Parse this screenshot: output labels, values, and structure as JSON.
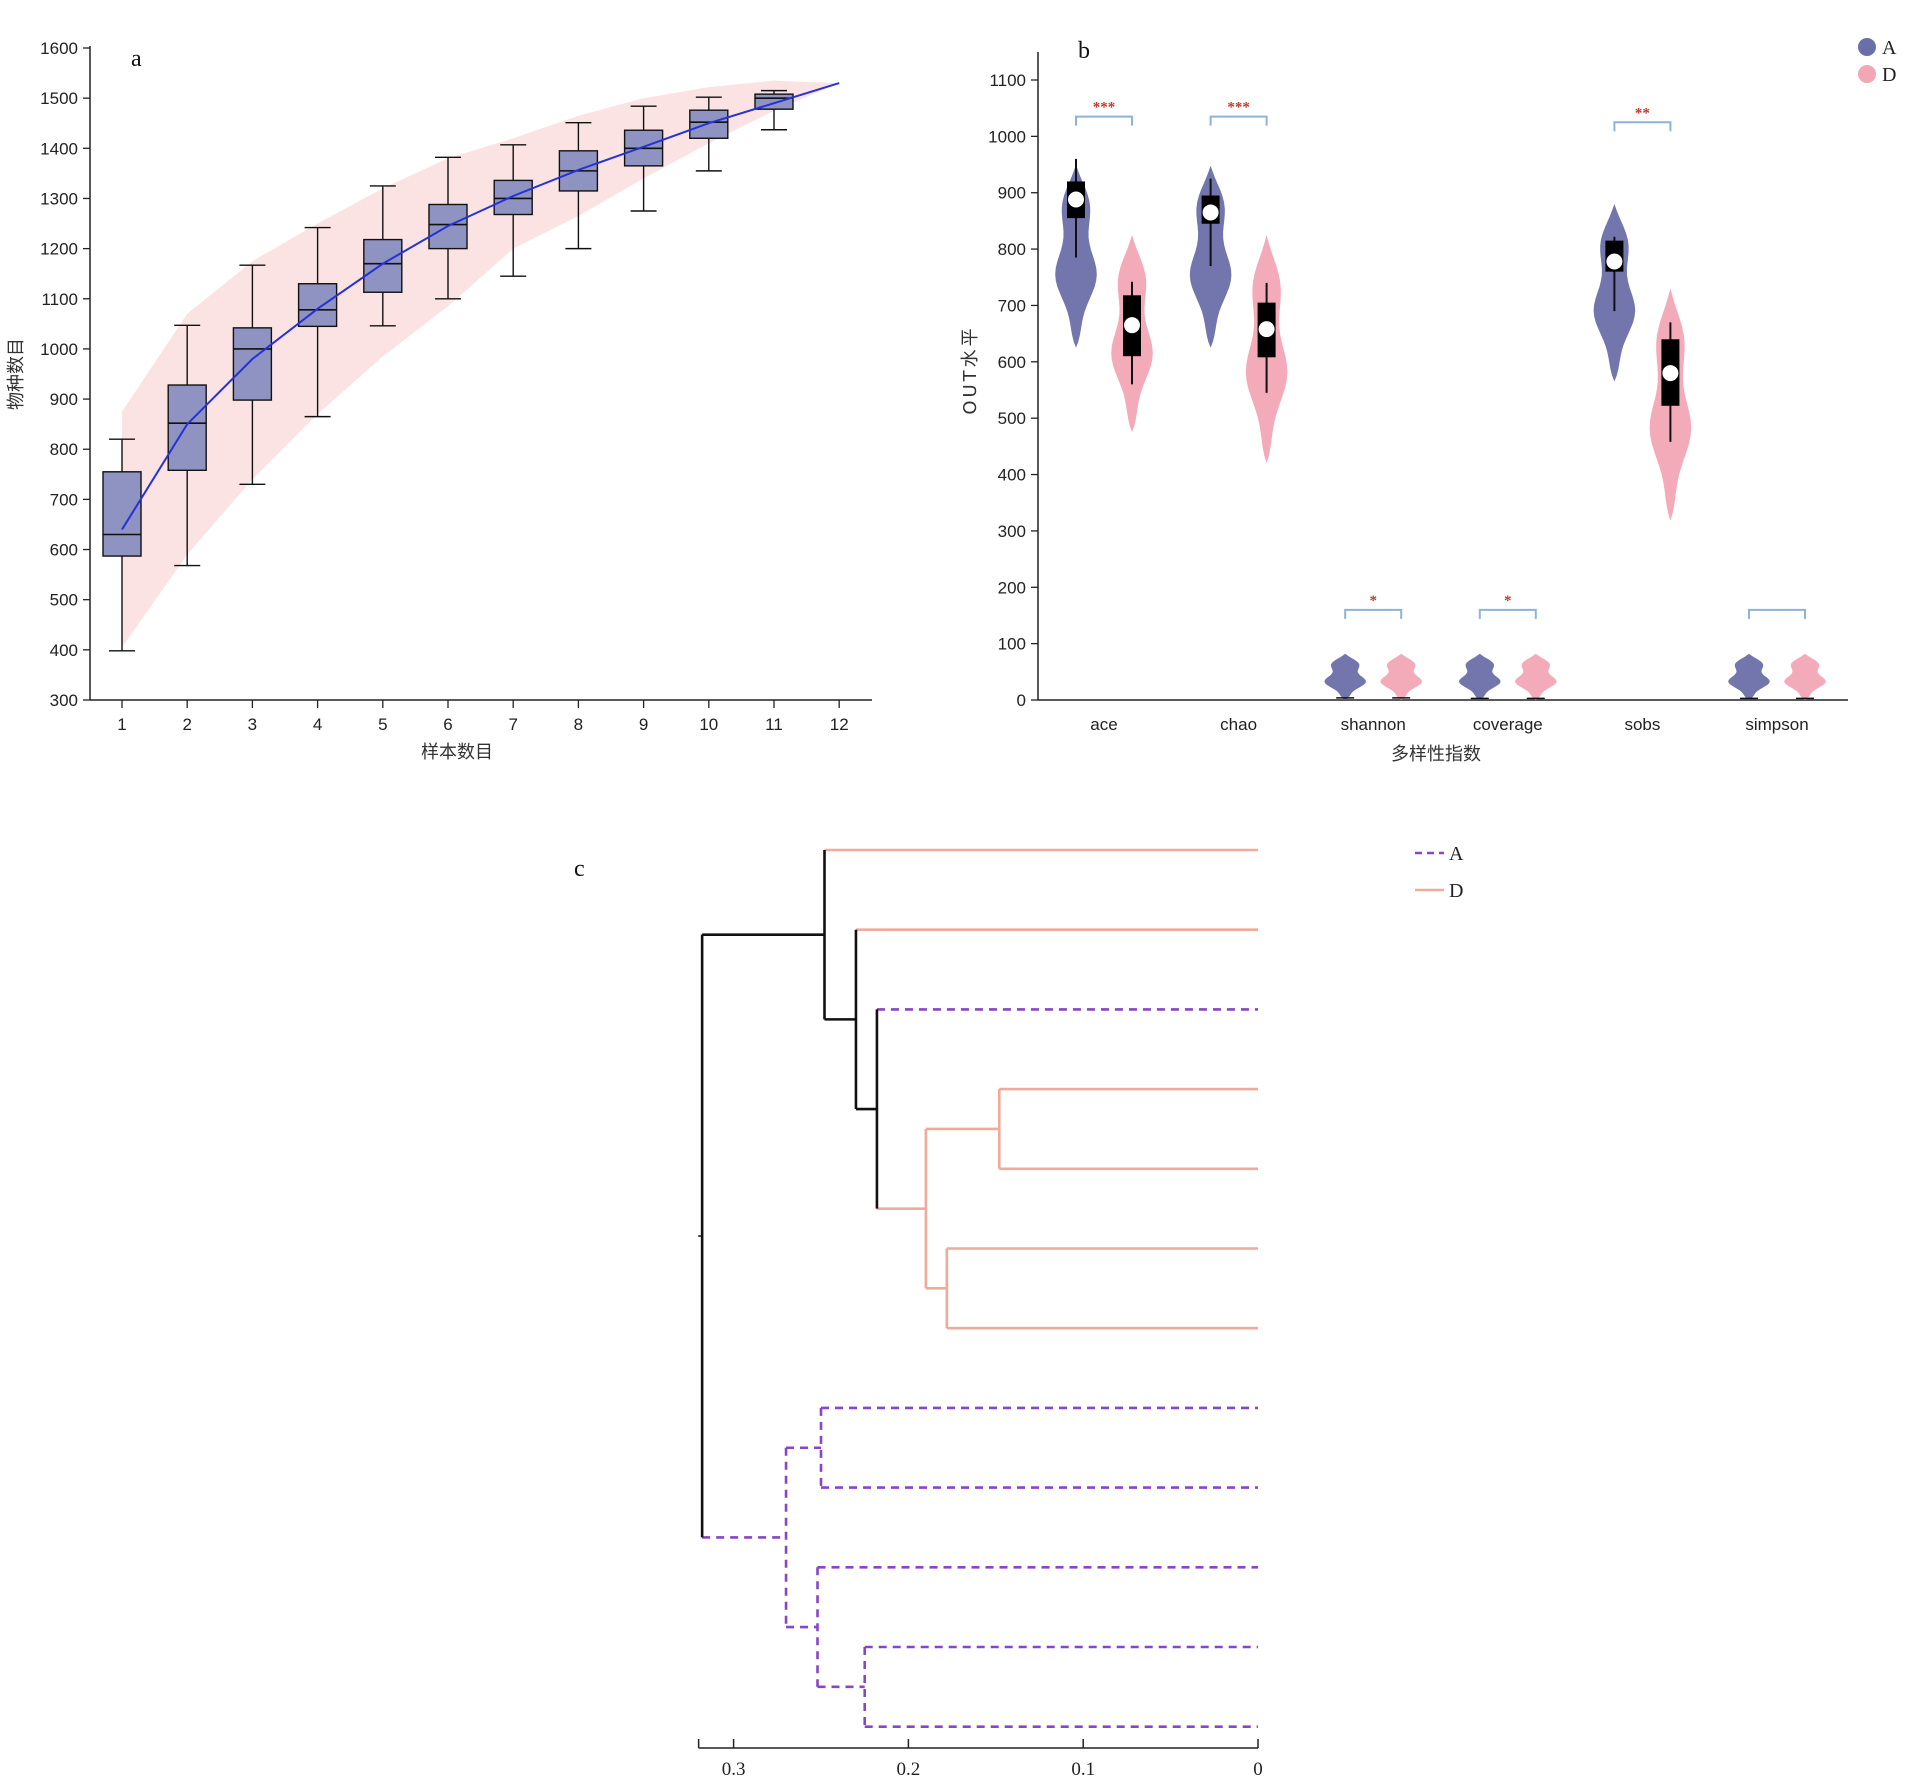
{
  "chart_data": [
    {
      "panel": "a",
      "type": "box",
      "label": "a",
      "xlabel": "样本数目",
      "ylabel": "物种数目",
      "ylim": [
        300,
        1600
      ],
      "yticks": [
        300,
        400,
        500,
        600,
        700,
        800,
        900,
        1000,
        1100,
        1200,
        1300,
        1400,
        1500,
        1600
      ],
      "categories": [
        "1",
        "2",
        "3",
        "4",
        "5",
        "6",
        "7",
        "8",
        "9",
        "10",
        "11",
        "12"
      ],
      "boxes": [
        {
          "min": 398,
          "q1": 587,
          "median": 630,
          "q3": 755,
          "max": 820
        },
        {
          "min": 568,
          "q1": 758,
          "median": 852,
          "q3": 928,
          "max": 1047
        },
        {
          "min": 730,
          "q1": 898,
          "median": 1000,
          "q3": 1042,
          "max": 1167
        },
        {
          "min": 865,
          "q1": 1045,
          "median": 1078,
          "q3": 1130,
          "max": 1242
        },
        {
          "min": 1046,
          "q1": 1113,
          "median": 1170,
          "q3": 1218,
          "max": 1325
        },
        {
          "min": 1100,
          "q1": 1200,
          "median": 1248,
          "q3": 1288,
          "max": 1382
        },
        {
          "min": 1145,
          "q1": 1268,
          "median": 1300,
          "q3": 1336,
          "max": 1407
        },
        {
          "min": 1200,
          "q1": 1315,
          "median": 1355,
          "q3": 1395,
          "max": 1451
        },
        {
          "min": 1275,
          "q1": 1365,
          "median": 1400,
          "q3": 1436,
          "max": 1484
        },
        {
          "min": 1355,
          "q1": 1420,
          "median": 1452,
          "q3": 1476,
          "max": 1502
        },
        {
          "min": 1437,
          "q1": 1478,
          "median": 1500,
          "q3": 1508,
          "max": 1515
        }
      ],
      "mean_curve": [
        640,
        850,
        980,
        1080,
        1170,
        1245,
        1305,
        1357,
        1403,
        1450,
        1490,
        1530
      ],
      "band_lower": [
        405,
        590,
        740,
        870,
        985,
        1085,
        1200,
        1265,
        1340,
        1410,
        1475,
        1530
      ],
      "band_upper": [
        875,
        1070,
        1175,
        1250,
        1320,
        1380,
        1420,
        1465,
        1500,
        1522,
        1535,
        1530
      ],
      "colors": {
        "box": "#8f93c2",
        "curve": "#2432d6",
        "band": "#fce3e3"
      }
    },
    {
      "panel": "b",
      "type": "violin",
      "label": "b",
      "xlabel": "多样性指数",
      "ylabel": "OUT水平",
      "ylim": [
        0,
        1150
      ],
      "yticks": [
        0,
        100,
        200,
        300,
        400,
        500,
        600,
        700,
        800,
        900,
        1000,
        1100
      ],
      "categories": [
        "ace",
        "chao",
        "shannon",
        "coverage",
        "sobs",
        "simpson"
      ],
      "legend": [
        {
          "name": "A",
          "color": "#6a6fa8"
        },
        {
          "name": "D",
          "color": "#f3a6b5"
        }
      ],
      "groups": [
        {
          "A": {
            "min": 785,
            "q1": 855,
            "median": 888,
            "q3": 920,
            "max": 960,
            "vmin": 625,
            "vmax": 950
          },
          "D": {
            "min": 560,
            "q1": 610,
            "median": 665,
            "q3": 718,
            "max": 742,
            "vmin": 475,
            "vmax": 825
          }
        },
        {
          "A": {
            "min": 770,
            "q1": 845,
            "median": 865,
            "q3": 895,
            "max": 925,
            "vmin": 625,
            "vmax": 948
          },
          "D": {
            "min": 545,
            "q1": 608,
            "median": 658,
            "q3": 705,
            "max": 740,
            "vmin": 420,
            "vmax": 825
          }
        },
        {
          "A": {
            "min": 0,
            "q1": 0,
            "median": 2,
            "q3": 4,
            "max": 6,
            "vmin": 0,
            "vmax": 82
          },
          "D": {
            "min": 0,
            "q1": 0,
            "median": 2,
            "q3": 4,
            "max": 6,
            "vmin": 0,
            "vmax": 82
          }
        },
        {
          "A": {
            "min": 0,
            "q1": 0,
            "median": 1,
            "q3": 1,
            "max": 1,
            "vmin": 0,
            "vmax": 82
          },
          "D": {
            "min": 0,
            "q1": 0,
            "median": 1,
            "q3": 1,
            "max": 1,
            "vmin": 0,
            "vmax": 82
          }
        },
        {
          "A": {
            "min": 690,
            "q1": 760,
            "median": 778,
            "q3": 815,
            "max": 822,
            "vmin": 565,
            "vmax": 880
          },
          "D": {
            "min": 458,
            "q1": 522,
            "median": 580,
            "q3": 640,
            "max": 670,
            "vmin": 318,
            "vmax": 730
          }
        },
        {
          "A": {
            "min": 0,
            "q1": 0,
            "median": 1,
            "q3": 1,
            "max": 1,
            "vmin": 0,
            "vmax": 82
          },
          "D": {
            "min": 0,
            "q1": 0,
            "median": 1,
            "q3": 1,
            "max": 1,
            "vmin": 0,
            "vmax": 82
          }
        }
      ],
      "significance": [
        {
          "category": "ace",
          "label": "***",
          "y": 1035
        },
        {
          "category": "chao",
          "label": "***",
          "y": 1035
        },
        {
          "category": "shannon",
          "label": "*",
          "y": 160
        },
        {
          "category": "coverage",
          "label": "*",
          "y": 160
        },
        {
          "category": "sobs",
          "label": "**",
          "y": 1025
        },
        {
          "category": "simpson",
          "label": "",
          "y": 160
        }
      ]
    },
    {
      "panel": "c",
      "type": "dendrogram",
      "label": "c",
      "xlim": [
        0.32,
        0
      ],
      "xticks": [
        {
          "value": 0.3,
          "label": "0.3"
        },
        {
          "value": 0.2,
          "label": "0.2"
        },
        {
          "value": 0.1,
          "label": "0.1"
        },
        {
          "value": 0,
          "label": "0"
        }
      ],
      "legend": [
        {
          "name": "A",
          "color": "#8a44c8",
          "style": "dashed"
        },
        {
          "name": "D",
          "color": "#f0aa99",
          "style": "solid"
        }
      ],
      "leaves": [
        "D",
        "D",
        "A",
        "D",
        "D",
        "D",
        "D",
        "A",
        "A",
        "A",
        "A",
        "A"
      ],
      "merges": [
        {
          "id": "n1",
          "children": [
            "L3",
            "L4"
          ],
          "height": 0.148,
          "group": "D"
        },
        {
          "id": "n2",
          "children": [
            "L5",
            "L6"
          ],
          "height": 0.178,
          "group": "D"
        },
        {
          "id": "n3",
          "children": [
            "n1",
            "n2"
          ],
          "height": 0.19,
          "group": "D"
        },
        {
          "id": "n4",
          "children": [
            "L2",
            "n3"
          ],
          "height": 0.218,
          "group": "mixed"
        },
        {
          "id": "n5",
          "children": [
            "L1",
            "n4"
          ],
          "height": 0.23,
          "group": "mixed"
        },
        {
          "id": "n6",
          "children": [
            "L0",
            "n5"
          ],
          "height": 0.248,
          "group": "mixed"
        },
        {
          "id": "n7",
          "children": [
            "L10",
            "L11"
          ],
          "height": 0.225,
          "group": "A"
        },
        {
          "id": "n8",
          "children": [
            "L9",
            "n7"
          ],
          "height": 0.252,
          "group": "A"
        },
        {
          "id": "n9",
          "children": [
            "L7",
            "L8"
          ],
          "height": 0.25,
          "group": "A"
        },
        {
          "id": "n10",
          "children": [
            "n9",
            "n8"
          ],
          "height": 0.27,
          "group": "A"
        },
        {
          "id": "n11",
          "children": [
            "n6",
            "n10"
          ],
          "height": 0.318,
          "group": "root"
        }
      ]
    }
  ]
}
